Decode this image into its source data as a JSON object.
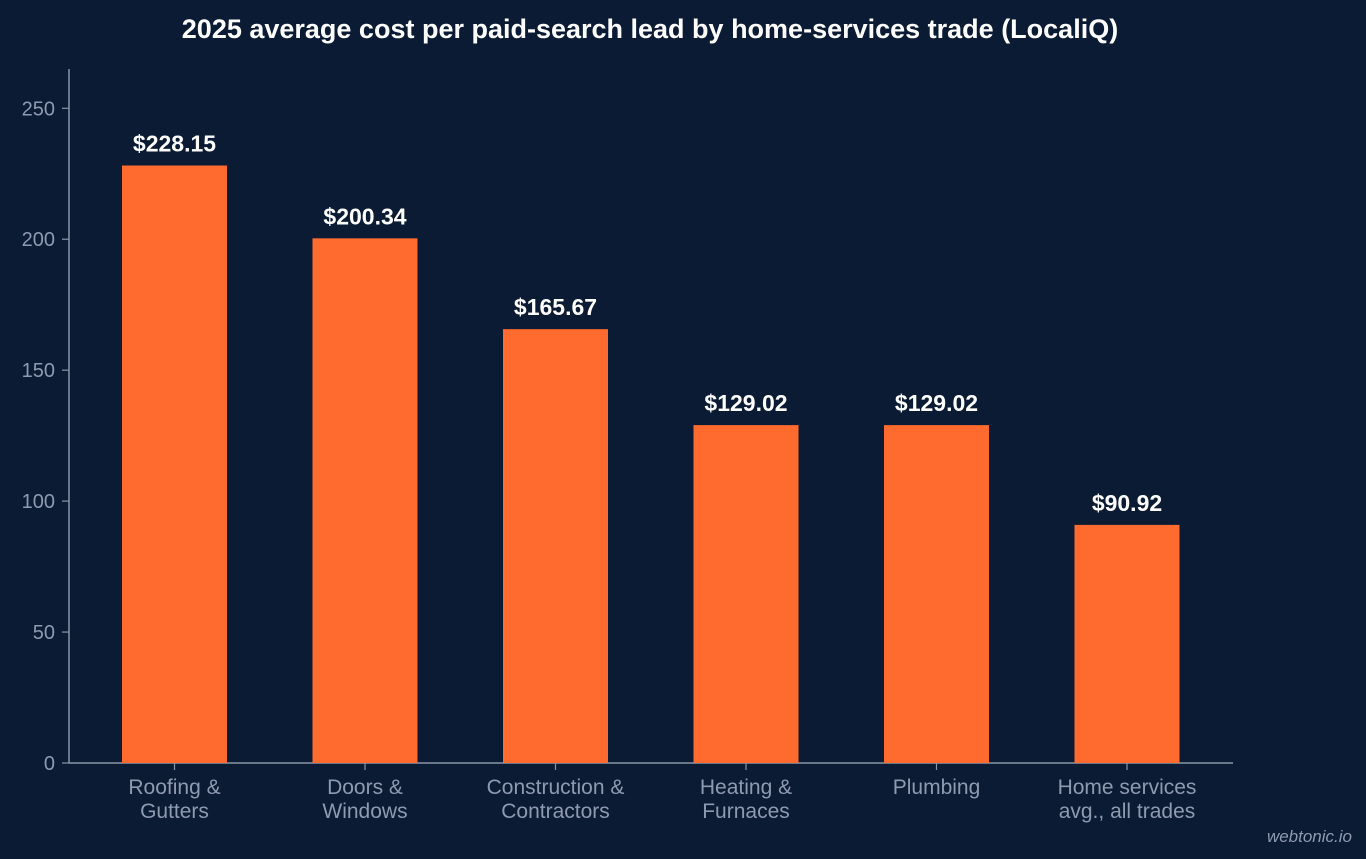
{
  "colors": {
    "background": "#0b1b33",
    "bar": "#ff6b2e",
    "axis": "#8a96a8",
    "tick_text": "#8e9ab0",
    "title_text": "#ffffff",
    "label_text": "#ffffff"
  },
  "chart_data": {
    "type": "bar",
    "title": "2025 average cost per paid-search lead by home-services trade (LocaliQ)",
    "xlabel": "",
    "ylabel": "",
    "categories": [
      [
        "Roofing &",
        "Gutters"
      ],
      [
        "Doors &",
        "Windows"
      ],
      [
        "Construction &",
        "Contractors"
      ],
      [
        "Heating &",
        "Furnaces"
      ],
      [
        "Plumbing"
      ],
      [
        "Home services",
        "avg., all trades"
      ]
    ],
    "values": [
      228.15,
      200.34,
      165.67,
      129.02,
      129.02,
      90.92
    ],
    "data_labels": [
      "$228.15",
      "$200.34",
      "$165.67",
      "$129.02",
      "$129.02",
      "$90.92"
    ],
    "ylim": [
      0,
      265
    ],
    "yticks": [
      0,
      50,
      100,
      150,
      200,
      250
    ],
    "grid": false,
    "legend": "none"
  },
  "watermark": "webtonic.io"
}
